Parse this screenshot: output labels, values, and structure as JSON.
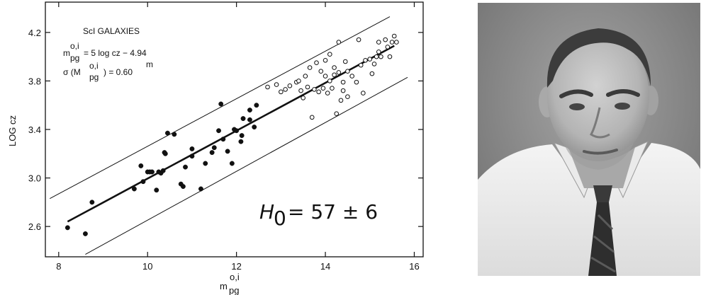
{
  "chart_data": {
    "type": "scatter",
    "xlabel": "m",
    "xlabel_sup": "o,i",
    "xlabel_sub": "pg",
    "ylabel": "LOG cz",
    "xlim": [
      7.7,
      16.2
    ],
    "ylim": [
      2.35,
      4.45
    ],
    "xticks": [
      8,
      10,
      12,
      14,
      16
    ],
    "yticks": [
      2.6,
      3.0,
      3.4,
      3.8,
      4.2
    ],
    "xtick_labels": [
      "8",
      "10",
      "12",
      "14",
      "16"
    ],
    "ytick_labels": [
      "2.6",
      "3.0",
      "3.4",
      "3.8",
      "4.2"
    ],
    "grid": false,
    "annotations": {
      "title": "ScI GALAXIES",
      "equation": "= 5 log cz − 4.94",
      "sigma_prefix": "σ (M",
      "sigma_value": ") = 0.60",
      "sigma_unit": "m",
      "sup_oi": "o,i",
      "sub_pg": "pg",
      "m_letter": "m",
      "hubble_h": "H",
      "hubble_sub": "0",
      "hubble_value": "= 57 ± 6"
    },
    "series": [
      {
        "marker": "filled",
        "points": [
          [
            8.2,
            2.59
          ],
          [
            8.6,
            2.54
          ],
          [
            8.75,
            2.8
          ],
          [
            9.7,
            2.91
          ],
          [
            9.85,
            3.1
          ],
          [
            9.9,
            2.97
          ],
          [
            10.0,
            3.05
          ],
          [
            10.05,
            3.05
          ],
          [
            10.1,
            3.05
          ],
          [
            10.2,
            2.9
          ],
          [
            10.25,
            3.05
          ],
          [
            10.3,
            3.04
          ],
          [
            10.35,
            3.06
          ],
          [
            10.38,
            3.21
          ],
          [
            10.4,
            3.2
          ],
          [
            10.45,
            3.37
          ],
          [
            10.6,
            3.36
          ],
          [
            10.75,
            2.95
          ],
          [
            10.8,
            2.93
          ],
          [
            10.85,
            3.09
          ],
          [
            11.0,
            3.18
          ],
          [
            11.0,
            3.24
          ],
          [
            11.2,
            2.91
          ],
          [
            11.3,
            3.12
          ],
          [
            11.45,
            3.21
          ],
          [
            11.5,
            3.25
          ],
          [
            11.6,
            3.39
          ],
          [
            11.65,
            3.61
          ],
          [
            11.7,
            3.32
          ],
          [
            11.8,
            3.22
          ],
          [
            11.9,
            3.12
          ],
          [
            11.95,
            3.4
          ],
          [
            12.0,
            3.39
          ],
          [
            12.1,
            3.3
          ],
          [
            12.12,
            3.35
          ],
          [
            12.15,
            3.49
          ],
          [
            12.3,
            3.56
          ],
          [
            12.3,
            3.48
          ],
          [
            12.4,
            3.42
          ],
          [
            12.45,
            3.6
          ]
        ]
      },
      {
        "marker": "open",
        "points": [
          [
            12.7,
            3.75
          ],
          [
            12.9,
            3.77
          ],
          [
            13.0,
            3.71
          ],
          [
            13.1,
            3.73
          ],
          [
            13.2,
            3.76
          ],
          [
            13.35,
            3.79
          ],
          [
            13.4,
            3.8
          ],
          [
            13.45,
            3.72
          ],
          [
            13.5,
            3.66
          ],
          [
            13.55,
            3.84
          ],
          [
            13.6,
            3.75
          ],
          [
            13.65,
            3.91
          ],
          [
            13.7,
            3.5
          ],
          [
            13.75,
            3.73
          ],
          [
            13.8,
            3.95
          ],
          [
            13.85,
            3.71
          ],
          [
            13.9,
            3.88
          ],
          [
            13.95,
            3.74
          ],
          [
            14.0,
            3.97
          ],
          [
            14.0,
            3.84
          ],
          [
            14.05,
            3.7
          ],
          [
            14.1,
            3.8
          ],
          [
            14.1,
            4.02
          ],
          [
            14.15,
            3.74
          ],
          [
            14.2,
            3.85
          ],
          [
            14.2,
            3.91
          ],
          [
            14.25,
            3.53
          ],
          [
            14.3,
            4.12
          ],
          [
            14.3,
            3.87
          ],
          [
            14.35,
            3.64
          ],
          [
            14.4,
            3.79
          ],
          [
            14.4,
            3.72
          ],
          [
            14.45,
            3.96
          ],
          [
            14.5,
            3.88
          ],
          [
            14.5,
            3.67
          ],
          [
            14.6,
            3.84
          ],
          [
            14.7,
            3.79
          ],
          [
            14.75,
            4.14
          ],
          [
            14.8,
            3.93
          ],
          [
            14.85,
            3.7
          ],
          [
            14.9,
            3.97
          ],
          [
            15.0,
            3.98
          ],
          [
            15.05,
            3.86
          ],
          [
            15.1,
            3.94
          ],
          [
            15.15,
            4.0
          ],
          [
            15.2,
            4.12
          ],
          [
            15.2,
            4.04
          ],
          [
            15.25,
            4.0
          ],
          [
            15.35,
            4.14
          ],
          [
            15.4,
            4.08
          ],
          [
            15.45,
            4.0
          ],
          [
            15.5,
            4.12
          ],
          [
            15.55,
            4.17
          ],
          [
            15.6,
            4.12
          ]
        ]
      }
    ],
    "lines": [
      {
        "style": "thick",
        "from": [
          8.2,
          2.64
        ],
        "to": [
          15.55,
          4.09
        ]
      },
      {
        "style": "thin",
        "from": [
          7.8,
          2.83
        ],
        "to": [
          15.45,
          4.33
        ]
      },
      {
        "style": "thin",
        "from": [
          8.6,
          2.37
        ],
        "to": [
          15.85,
          3.83
        ]
      }
    ]
  }
}
